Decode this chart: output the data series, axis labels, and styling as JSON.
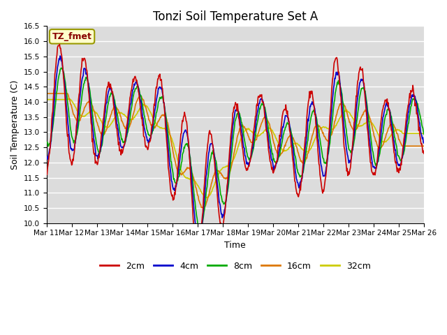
{
  "title": "Tonzi Soil Temperature Set A",
  "xlabel": "Time",
  "ylabel": "Soil Temperature (C)",
  "ylim": [
    10.0,
    16.5
  ],
  "yticks": [
    10.0,
    10.5,
    11.0,
    11.5,
    12.0,
    12.5,
    13.0,
    13.5,
    14.0,
    14.5,
    15.0,
    15.5,
    16.0,
    16.5
  ],
  "xtick_labels": [
    "Mar 11",
    "Mar 12",
    "Mar 13",
    "Mar 14",
    "Mar 15",
    "Mar 16",
    "Mar 17",
    "Mar 18",
    "Mar 19",
    "Mar 20",
    "Mar 21",
    "Mar 22",
    "Mar 23",
    "Mar 24",
    "Mar 25",
    "Mar 26"
  ],
  "n_days": 15,
  "pts_per_day": 48,
  "color_2cm": "#cc0000",
  "color_4cm": "#0000cc",
  "color_8cm": "#00aa00",
  "color_16cm": "#dd7700",
  "color_32cm": "#cccc00",
  "annotation_text": "TZ_fmet",
  "annotation_fg": "#880000",
  "annotation_bg": "#ffffcc",
  "annotation_border": "#999900",
  "plot_bg": "#dcdcdc",
  "fig_bg": "#ffffff",
  "grid_color": "#ffffff",
  "line_width": 1.2,
  "title_fontsize": 12,
  "label_fontsize": 9,
  "tick_fontsize": 7.5,
  "legend_fontsize": 9
}
